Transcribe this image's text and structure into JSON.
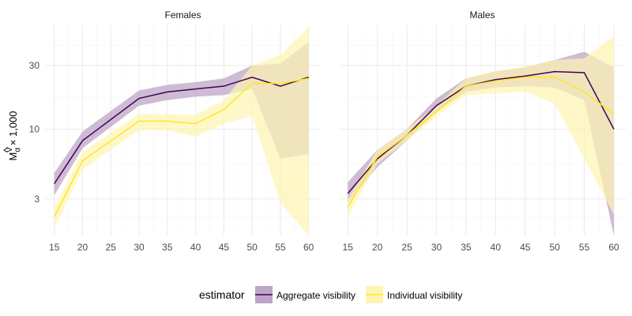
{
  "chart_data": {
    "type": "line",
    "panels": [
      "Females",
      "Males"
    ],
    "x_ticks": [
      15,
      20,
      25,
      30,
      35,
      40,
      45,
      50,
      55,
      60
    ],
    "y_scale": "log",
    "y_ticks": [
      3,
      10,
      30
    ],
    "ylim": [
      1.6,
      60
    ],
    "xlim": [
      13.5,
      62
    ],
    "ylabel_main": "M",
    "ylabel_sup": "V",
    "ylabel_sub": "α",
    "ylabel_suffix": "× 1,000",
    "legend": {
      "title": "estimator",
      "position": "bottom",
      "entries": [
        "Aggregate visibility",
        "Individual visibility"
      ]
    },
    "colors": {
      "aggregate_line": "#440154",
      "aggregate_fill": "#bca6c6",
      "individual_line": "#fde725",
      "individual_fill": "#fdf5b2",
      "grid_major": "#ebebeb",
      "grid_minor": "#f5f5f5"
    },
    "series": [
      {
        "name": "Aggregate visibility",
        "panel": "Females",
        "x": [
          15,
          20,
          30,
          35,
          40,
          45,
          50,
          55,
          60
        ],
        "y": [
          3.9,
          8.2,
          17.0,
          19.0,
          20.0,
          21.0,
          24.5,
          21.0,
          24.5
        ],
        "lower": [
          3.2,
          7.2,
          15.0,
          16.5,
          17.5,
          18.0,
          20.0,
          6.0,
          6.5
        ],
        "upper": [
          4.7,
          9.6,
          19.5,
          21.5,
          22.5,
          24.0,
          30.0,
          31.0,
          45.0
        ]
      },
      {
        "name": "Individual visibility",
        "panel": "Females",
        "x": [
          15,
          20,
          30,
          35,
          40,
          45,
          50,
          55,
          60
        ],
        "y": [
          2.2,
          5.8,
          11.5,
          11.5,
          11.0,
          14.0,
          22.0,
          22.0,
          24.0
        ],
        "lower": [
          1.8,
          5.0,
          9.8,
          9.8,
          8.8,
          11.0,
          12.5,
          2.8,
          1.6
        ],
        "upper": [
          2.6,
          6.8,
          13.0,
          13.0,
          12.8,
          16.5,
          30.0,
          36.0,
          58.0
        ]
      },
      {
        "name": "Aggregate visibility",
        "panel": "Males",
        "x": [
          15,
          20,
          25,
          30,
          35,
          40,
          45,
          50,
          55,
          60
        ],
        "y": [
          3.3,
          6.0,
          9.0,
          15.0,
          21.0,
          23.5,
          25.0,
          27.0,
          26.5,
          10.0
        ],
        "lower": [
          2.8,
          5.2,
          8.2,
          13.5,
          19.0,
          20.5,
          21.0,
          20.5,
          16.5,
          1.6
        ],
        "upper": [
          4.0,
          7.0,
          10.0,
          17.0,
          24.0,
          27.0,
          29.0,
          33.0,
          38.0,
          29.0
        ]
      },
      {
        "name": "Individual visibility",
        "panel": "Males",
        "x": [
          15,
          20,
          25,
          30,
          35,
          40,
          45,
          50,
          55,
          60
        ],
        "y": [
          2.6,
          6.2,
          9.0,
          13.5,
          21.0,
          23.0,
          24.5,
          24.5,
          19.0,
          13.0
        ],
        "lower": [
          2.2,
          5.5,
          8.2,
          12.5,
          18.0,
          18.5,
          19.0,
          15.5,
          6.0,
          2.3
        ],
        "upper": [
          3.0,
          7.0,
          10.0,
          15.0,
          24.0,
          27.5,
          29.5,
          33.0,
          34.0,
          50.0
        ]
      }
    ]
  }
}
